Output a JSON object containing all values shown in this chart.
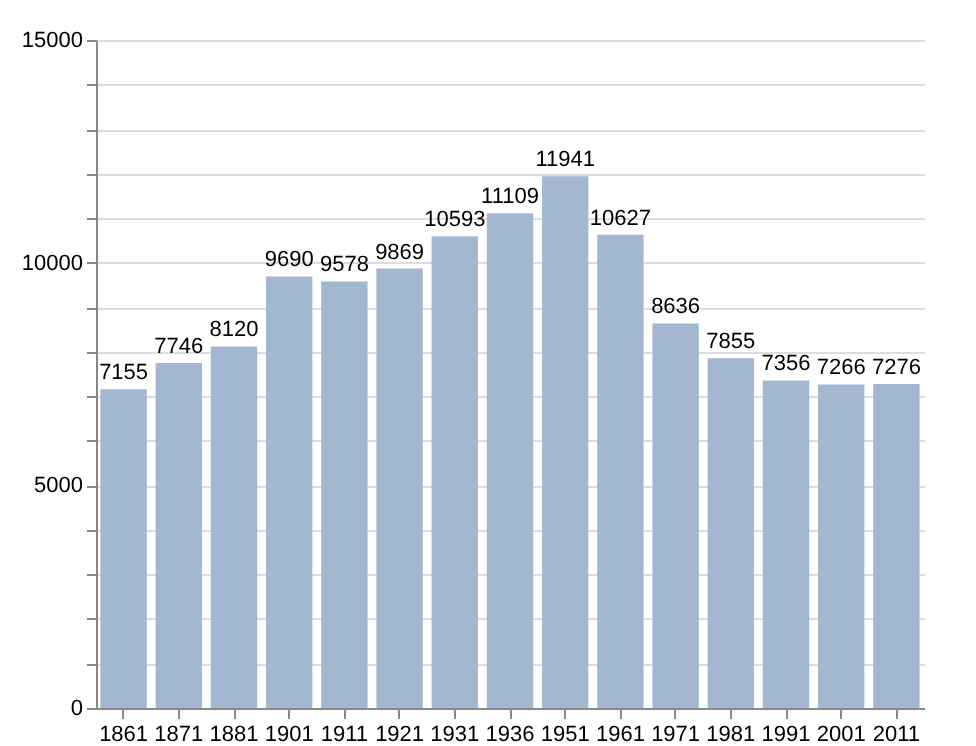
{
  "chart_data": {
    "type": "bar",
    "categories": [
      "1861",
      "1871",
      "1881",
      "1901",
      "1911",
      "1921",
      "1931",
      "1936",
      "1951",
      "1961",
      "1971",
      "1981",
      "1991",
      "2001",
      "2011"
    ],
    "values": [
      7155,
      7746,
      8120,
      9690,
      9578,
      9869,
      10593,
      11109,
      11941,
      10627,
      8636,
      7855,
      7356,
      7266,
      7276
    ],
    "color": "#a3b8d0",
    "data_labels": true,
    "ylim": [
      0,
      15000
    ],
    "yticks": [
      0,
      {
        "value": 1000,
        "label": null
      },
      {
        "value": 2000,
        "label": null
      },
      {
        "value": 3000,
        "label": null
      },
      {
        "value": 4000,
        "label": null
      },
      5000,
      {
        "value": 6000,
        "label": null
      },
      {
        "value": 7000,
        "label": null
      },
      {
        "value": 8000,
        "label": null
      },
      {
        "value": 9000,
        "label": null
      },
      10000,
      {
        "value": 11000,
        "label": null
      },
      {
        "value": 12000,
        "label": null
      },
      {
        "value": 13000,
        "label": null
      },
      {
        "value": 14000,
        "label": null
      },
      15000
    ],
    "grid": "y"
  }
}
